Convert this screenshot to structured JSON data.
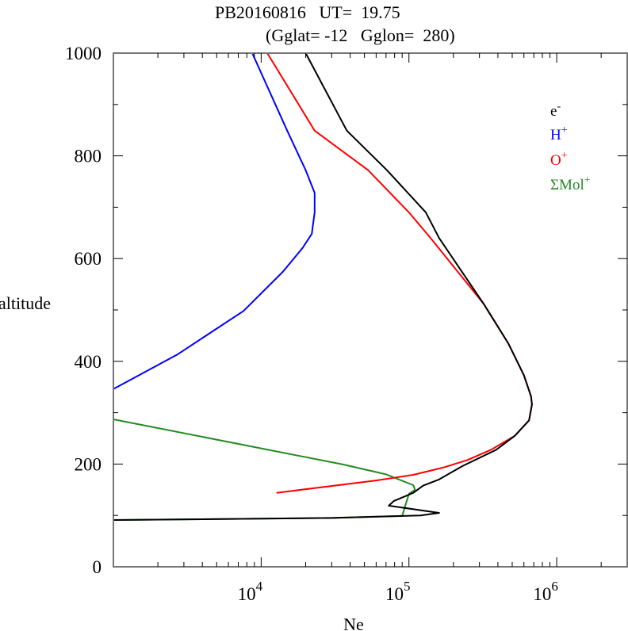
{
  "chart_data": {
    "type": "line",
    "title": "PB20160816   UT=  19.75",
    "subtitle": "(Gglat= -12   Gglon=  280)",
    "xlabel": "Ne",
    "ylabel": "altitude",
    "xscale": "log",
    "xlim": [
      1000,
      3000000
    ],
    "ylim": [
      0,
      1000
    ],
    "x_ticks": [
      {
        "value": 10000,
        "base": "10",
        "exp": "4"
      },
      {
        "value": 100000,
        "base": "10",
        "exp": "5"
      },
      {
        "value": 1000000,
        "base": "10",
        "exp": "6"
      }
    ],
    "y_ticks": [
      {
        "value": 0,
        "label": "0"
      },
      {
        "value": 200,
        "label": "200"
      },
      {
        "value": 400,
        "label": "400"
      },
      {
        "value": 600,
        "label": "600"
      },
      {
        "value": 800,
        "label": "800"
      },
      {
        "value": 1000,
        "label": "1000"
      }
    ],
    "grid": false,
    "legend_position": "top-right",
    "series": [
      {
        "name": "e-",
        "label_base": "e",
        "label_sup": "-",
        "color": "#000000",
        "points": [
          [
            1000,
            91
          ],
          [
            30000,
            95
          ],
          [
            120000,
            100
          ],
          [
            160000,
            105
          ],
          [
            73000,
            119
          ],
          [
            79000,
            128
          ],
          [
            107000,
            144
          ],
          [
            125000,
            158
          ],
          [
            160000,
            170
          ],
          [
            230000,
            196
          ],
          [
            390000,
            228
          ],
          [
            520000,
            255
          ],
          [
            650000,
            285
          ],
          [
            680000,
            316
          ],
          [
            670000,
            332
          ],
          [
            600000,
            373
          ],
          [
            470000,
            435
          ],
          [
            320000,
            512
          ],
          [
            160000,
            640
          ],
          [
            130000,
            690
          ],
          [
            71000,
            772
          ],
          [
            38000,
            849
          ],
          [
            20000,
            1000
          ]
        ]
      },
      {
        "name": "H+",
        "label_base": "H",
        "label_sup": "+",
        "color": "#0000ff",
        "points": [
          [
            1000,
            346
          ],
          [
            2700,
            413
          ],
          [
            7600,
            498
          ],
          [
            14000,
            574
          ],
          [
            19000,
            620
          ],
          [
            22000,
            648
          ],
          [
            23000,
            690
          ],
          [
            23000,
            728
          ],
          [
            20000,
            772
          ],
          [
            15000,
            849
          ],
          [
            8700,
            1000
          ]
        ]
      },
      {
        "name": "O+",
        "label_base": "O",
        "label_sup": "+",
        "color": "#ff0000",
        "points": [
          [
            12700,
            144
          ],
          [
            60000,
            168
          ],
          [
            107000,
            179
          ],
          [
            170000,
            193
          ],
          [
            250000,
            208
          ],
          [
            360000,
            228
          ],
          [
            520000,
            255
          ],
          [
            650000,
            285
          ],
          [
            680000,
            316
          ],
          [
            670000,
            332
          ],
          [
            600000,
            373
          ],
          [
            470000,
            435
          ],
          [
            320000,
            512
          ],
          [
            140000,
            640
          ],
          [
            100000,
            690
          ],
          [
            53000,
            772
          ],
          [
            23000,
            849
          ],
          [
            11000,
            1000
          ]
        ]
      },
      {
        "name": "ΣMol+",
        "label_base": "ΣMol",
        "label_sup": "+",
        "color": "#228b22",
        "points": [
          [
            1000,
            91
          ],
          [
            30000,
            95
          ],
          [
            90000,
            99
          ],
          [
            100000,
            142
          ],
          [
            110000,
            150
          ],
          [
            107000,
            159
          ],
          [
            70000,
            180
          ],
          [
            36000,
            199
          ],
          [
            1000,
            287
          ]
        ]
      }
    ]
  }
}
